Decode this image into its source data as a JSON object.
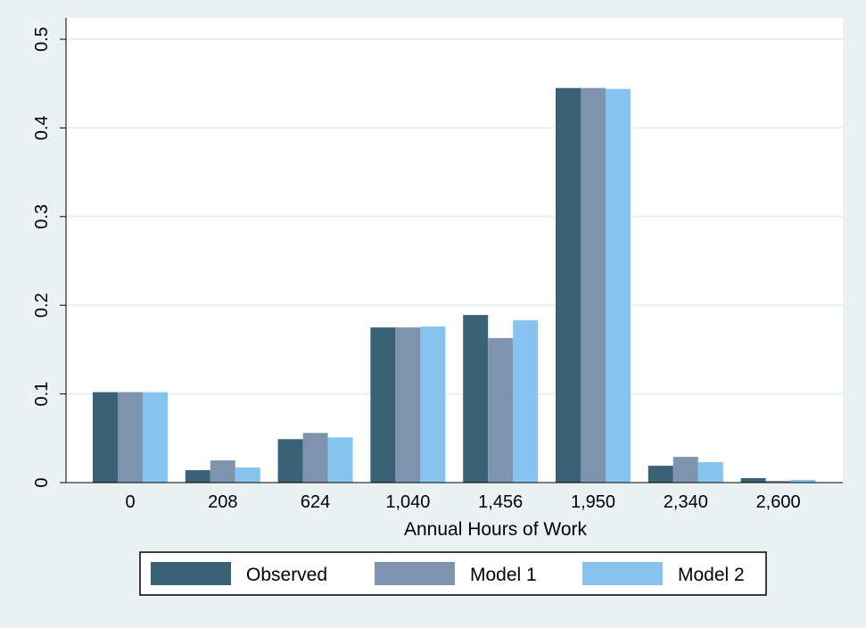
{
  "colors": {
    "background": "#eaf2f3",
    "plot_area": "#ffffff",
    "gridline": "#e9eff1",
    "axis": "#000000",
    "legend_border": "#000000"
  },
  "chart_data": {
    "type": "bar",
    "title": "",
    "xlabel": "Annual Hours of Work",
    "ylabel": "",
    "categories": [
      "0",
      "208",
      "624",
      "1,040",
      "1,456",
      "1,950",
      "2,340",
      "2,600"
    ],
    "yticks": [
      "0",
      "0.1",
      "0.2",
      "0.3",
      "0.4",
      "0.5"
    ],
    "ylim": [
      0,
      0.5
    ],
    "grid": true,
    "legend_position": "bottom",
    "series": [
      {
        "name": "Observed",
        "color": "#3a6275",
        "values": [
          0.102,
          0.014,
          0.049,
          0.175,
          0.189,
          0.445,
          0.019,
          0.005
        ]
      },
      {
        "name": "Model 1",
        "color": "#7e93ad",
        "values": [
          0.102,
          0.025,
          0.056,
          0.175,
          0.163,
          0.445,
          0.029,
          0.002
        ]
      },
      {
        "name": "Model 2",
        "color": "#84c4ef",
        "values": [
          0.102,
          0.017,
          0.051,
          0.176,
          0.183,
          0.444,
          0.023,
          0.003
        ]
      }
    ]
  }
}
